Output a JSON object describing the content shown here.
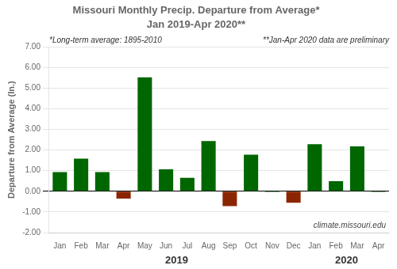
{
  "chart_data": {
    "type": "bar",
    "title": "Missouri Monthly Precip. Departure from Average*",
    "subtitle": "Jan 2019-Apr 2020**",
    "y_label": "Departure from Average (In.)",
    "annotations": [
      "*Long-term average: 1895-2010",
      "**Jan-Apr 2020 data are preliminary",
      "climate.missouri.edu"
    ],
    "group_labels": [
      "2019",
      "2020"
    ],
    "categories": [
      "Jan",
      "Feb",
      "Mar",
      "Apr",
      "May",
      "Jun",
      "Jul",
      "Aug",
      "Sep",
      "Oct",
      "Nov",
      "Dec",
      "Jan",
      "Feb",
      "Mar",
      "Apr"
    ],
    "values": [
      0.93,
      1.58,
      0.93,
      -0.35,
      5.52,
      1.07,
      0.65,
      2.44,
      -0.72,
      1.78,
      -0.04,
      -0.55,
      2.28,
      0.49,
      2.18,
      -0.04
    ],
    "colors": [
      "#006600",
      "#006600",
      "#006600",
      "#8B2500",
      "#006600",
      "#006600",
      "#006600",
      "#006600",
      "#8B2500",
      "#006600",
      "#006600",
      "#8B2500",
      "#006600",
      "#006600",
      "#006600",
      "#006600"
    ],
    "ylim": [
      -2.0,
      7.0
    ],
    "yticks": [
      {
        "value": -2.0,
        "label": "-2.00"
      },
      {
        "value": -1.0,
        "label": "-1.00"
      },
      {
        "value": 0.0,
        "label": "0.00"
      },
      {
        "value": 1.0,
        "label": "1.00"
      },
      {
        "value": 2.0,
        "label": "2.00"
      },
      {
        "value": 3.0,
        "label": "3.00"
      },
      {
        "value": 4.0,
        "label": "4.00"
      },
      {
        "value": 5.0,
        "label": "5.00"
      },
      {
        "value": 6.0,
        "label": "6.00"
      },
      {
        "value": 7.0,
        "label": "7.00"
      }
    ],
    "grid": true
  }
}
